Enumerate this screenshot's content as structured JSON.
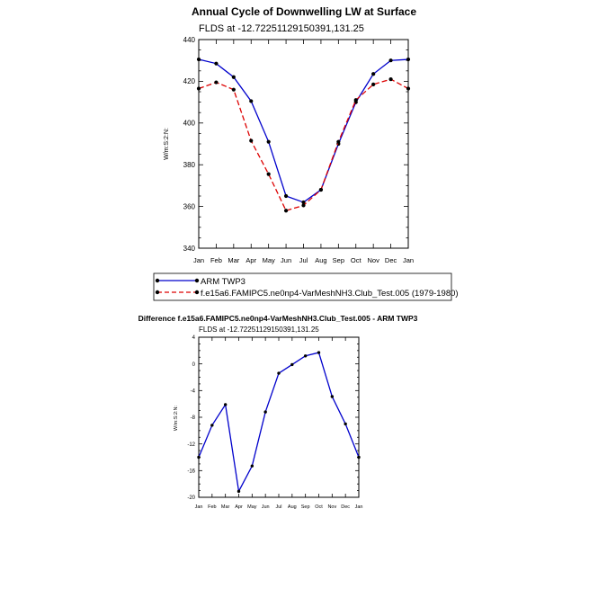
{
  "chart_data": [
    {
      "type": "line",
      "title": "Annual Cycle of Downwelling LW at Surface",
      "subtitle": "FLDS at -12.72251129150391,131.25",
      "ylabel": "W/m:S:2:N:",
      "xlabel": "",
      "ylim": [
        340,
        440
      ],
      "yticks": [
        340,
        360,
        380,
        400,
        420,
        440
      ],
      "categories": [
        "Jan",
        "Feb",
        "Mar",
        "Apr",
        "May",
        "Jun",
        "Jul",
        "Aug",
        "Sep",
        "Oct",
        "Nov",
        "Dec",
        "Jan"
      ],
      "series": [
        {
          "name": "ARM TWP3",
          "color": "#0000cc",
          "dash": "solid",
          "values": [
            430.5,
            428.5,
            422.0,
            410.5,
            391.0,
            365.0,
            362.0,
            368.0,
            390.0,
            410.0,
            423.5,
            430.0,
            430.5
          ]
        },
        {
          "name": "f.e15a6.FAMIPC5.ne0np4-VarMeshNH3.Club_Test.005 (1979-1980)",
          "color": "#dd0000",
          "dash": "dashed",
          "values": [
            416.5,
            419.5,
            416.0,
            391.5,
            375.5,
            358.0,
            360.5,
            368.0,
            391.0,
            411.0,
            418.5,
            421.0,
            416.5
          ]
        }
      ],
      "legend_position": "below"
    },
    {
      "type": "line",
      "title": "Difference f.e15a6.FAMIPC5.ne0np4-VarMeshNH3.Club_Test.005 - ARM TWP3",
      "subtitle": "FLDS at -12.72251129150391,131.25",
      "ylabel": "W/m:S:2:N:",
      "xlabel": "",
      "ylim": [
        -20,
        4
      ],
      "yticks": [
        -20,
        -16,
        -12,
        -8,
        -4,
        0,
        4
      ],
      "categories": [
        "Jan",
        "Feb",
        "Mar",
        "Apr",
        "May",
        "Jun",
        "Jul",
        "Aug",
        "Sep",
        "Oct",
        "Nov",
        "Dec",
        "Jan"
      ],
      "series": [
        {
          "name": "Difference",
          "color": "#0000cc",
          "dash": "solid",
          "values": [
            -14.0,
            -9.2,
            -6.1,
            -19.1,
            -15.3,
            -7.2,
            -1.4,
            -0.1,
            1.2,
            1.7,
            -4.9,
            -9.0,
            -14.0
          ]
        }
      ]
    }
  ]
}
